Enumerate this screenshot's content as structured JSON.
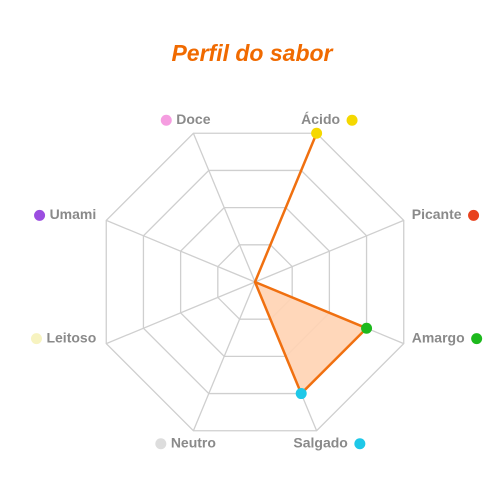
{
  "chart_data": {
    "type": "radar",
    "title": "Perfil do sabor",
    "categories": [
      "Doce",
      "Ácido",
      "Picante",
      "Amargo",
      "Salgado",
      "Neutro",
      "Leitoso",
      "Umami"
    ],
    "category_colors": [
      "#f59de0",
      "#f5d800",
      "#e8421e",
      "#1db91d",
      "#1ec8e8",
      "#dddddd",
      "#f7f3c0",
      "#9b4de0"
    ],
    "values": [
      0,
      4,
      0,
      3,
      3,
      0,
      0,
      0
    ],
    "color": "#f07010",
    "fill": "#ffd3b3",
    "ylim": [
      0,
      4
    ],
    "yticks": [
      1,
      2,
      3,
      4
    ],
    "grid": true
  }
}
